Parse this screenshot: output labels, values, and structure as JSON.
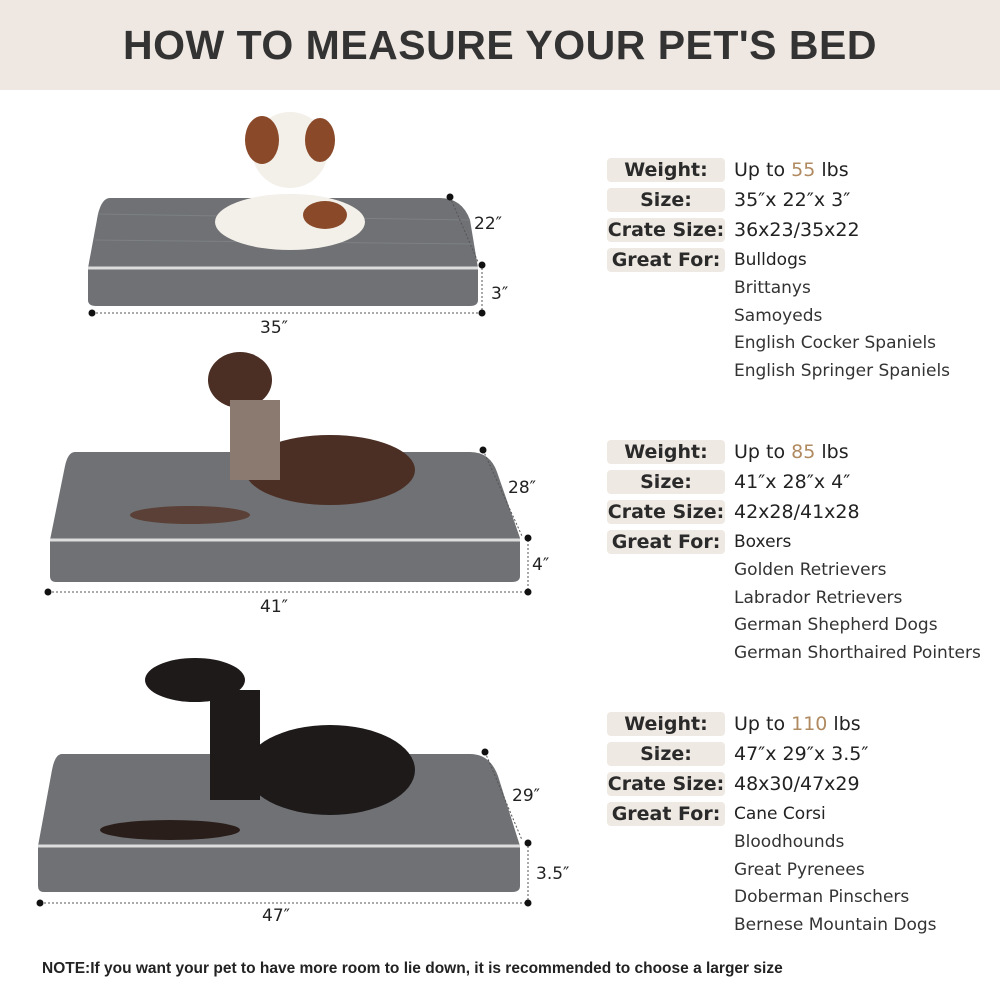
{
  "title": "HOW TO MEASURE YOUR PET'S BED",
  "labels": {
    "weight": "Weight:",
    "size": "Size:",
    "crate": "Crate Size:",
    "great": "Great For:"
  },
  "colors": {
    "header_bg": "#efe8e2",
    "label_bg": "#efe9e3",
    "accent": "#b08a60",
    "bed": "#6f7174"
  },
  "beds": [
    {
      "weight_prefix": "Up to ",
      "weight": "55",
      "weight_unit": " lbs",
      "size": "35″x 22″x 3″",
      "crate": "36x23/35x22",
      "breeds": [
        "Bulldogs",
        "Brittanys",
        "Samoyeds",
        "English Cocker Spaniels",
        "English Springer Spaniels"
      ],
      "dims": {
        "length": "35″",
        "width": "22″",
        "height": "3″"
      }
    },
    {
      "weight_prefix": "Up to ",
      "weight": "85",
      "weight_unit": " lbs",
      "size": "41″x 28″x 4″",
      "crate": "42x28/41x28",
      "breeds": [
        "Boxers",
        "Golden Retrievers",
        "Labrador Retrievers",
        "German Shepherd Dogs",
        "German Shorthaired Pointers"
      ],
      "dims": {
        "length": "41″",
        "width": "28″",
        "height": "4″"
      }
    },
    {
      "weight_prefix": "Up to ",
      "weight": "110",
      "weight_unit": " lbs",
      "size": "47″x 29″x 3.5″",
      "crate": "48x30/47x29",
      "breeds": [
        "Cane Corsi",
        "Bloodhounds",
        "Great Pyrenees",
        "Doberman Pinschers",
        "Bernese Mountain Dogs"
      ],
      "dims": {
        "length": "47″",
        "width": "29″",
        "height": "3.5″"
      }
    }
  ],
  "note": "NOTE:If you want your pet to have more room to lie down, it is recommended to choose a larger size"
}
